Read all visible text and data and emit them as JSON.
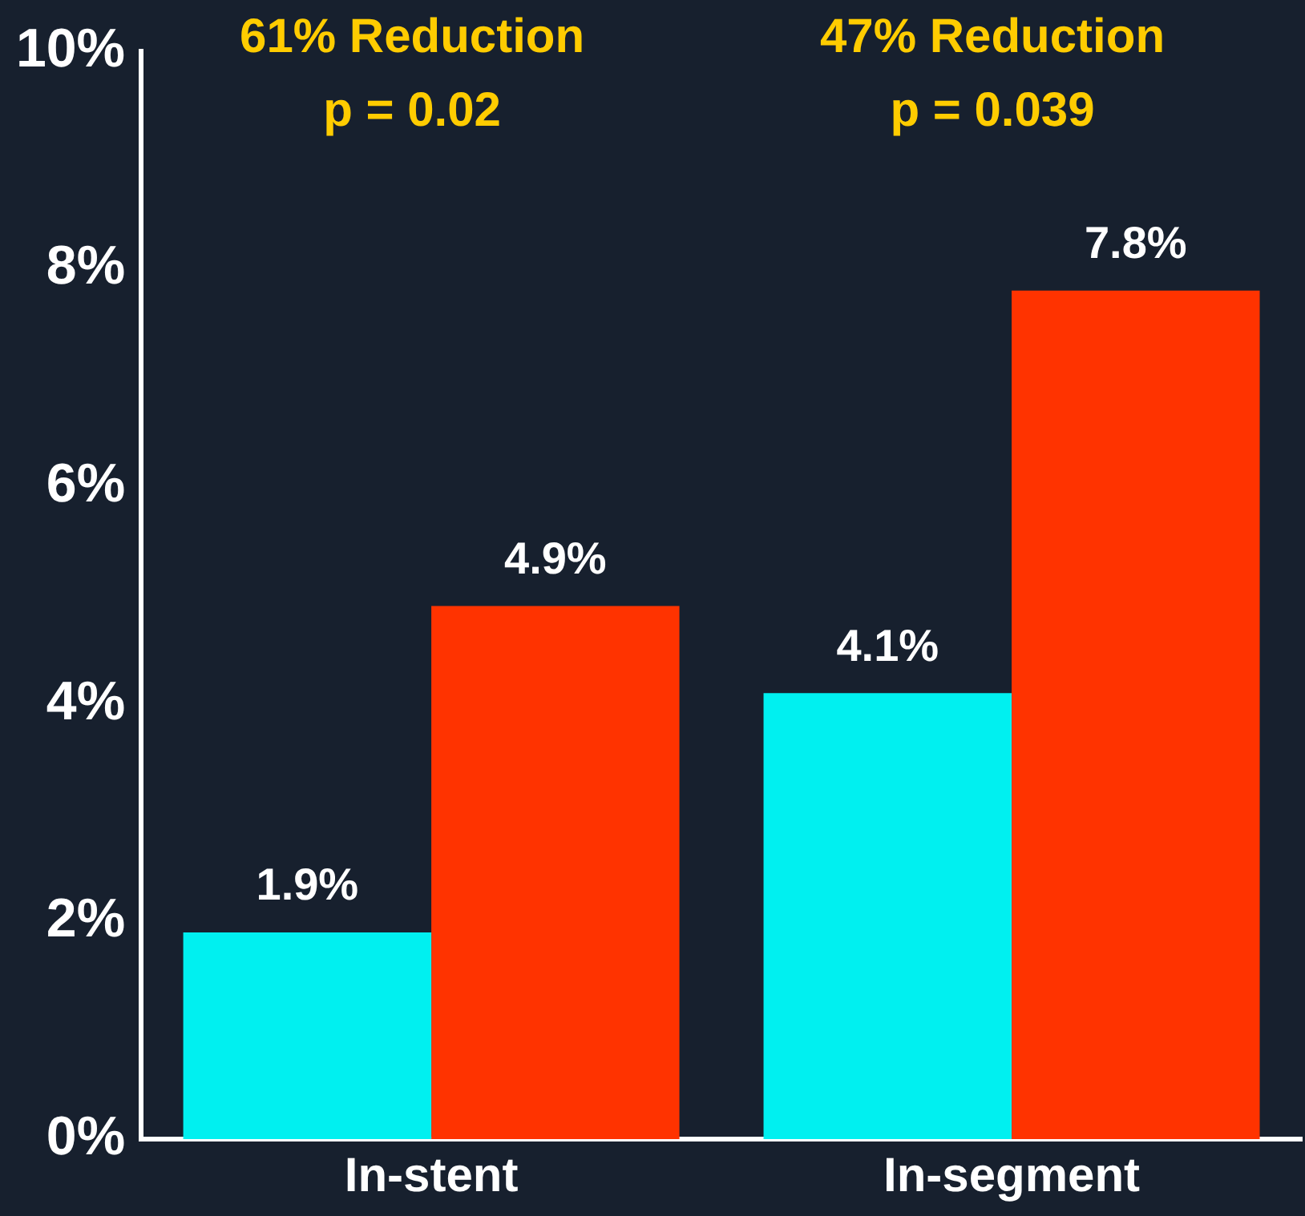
{
  "chart_data": {
    "type": "bar",
    "categories": [
      "In-stent",
      "In-segment"
    ],
    "series": [
      {
        "color": "#00f0f0",
        "values": [
          1.9,
          4.1
        ],
        "value_labels": [
          "1.9%",
          "4.1%"
        ]
      },
      {
        "color": "#ff3300",
        "values": [
          4.9,
          7.8
        ],
        "value_labels": [
          "4.9%",
          "7.8%"
        ]
      }
    ],
    "ylim": [
      0,
      10
    ],
    "yticks": [
      {
        "value": 0,
        "label": "0%"
      },
      {
        "value": 2,
        "label": "2%"
      },
      {
        "value": 4,
        "label": "4%"
      },
      {
        "value": 6,
        "label": "6%"
      },
      {
        "value": 8,
        "label": "8%"
      },
      {
        "value": 10,
        "label": "10%"
      }
    ],
    "annotations": [
      "61% Reduction\np = 0.02",
      "47% Reduction\np = 0.039"
    ]
  }
}
